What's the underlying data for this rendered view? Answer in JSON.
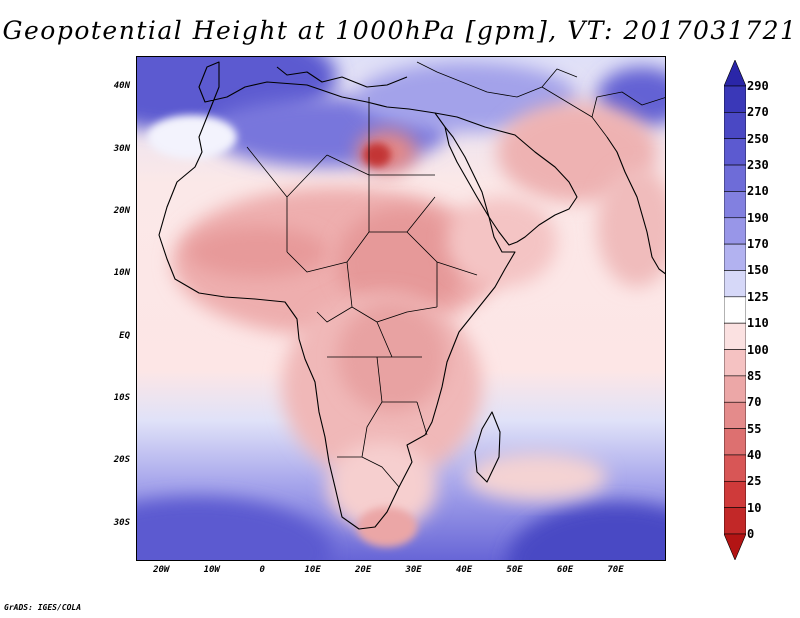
{
  "title": "Geopotential Height at 1000hPa [gpm], VT: 2017031721",
  "credit": "GrADS: IGES/COLA",
  "map": {
    "variable": "Geopotential Height",
    "level": "1000hPa",
    "units": "gpm",
    "valid_time": "2017031721",
    "lon_range": [
      -25,
      80
    ],
    "lat_range": [
      -36,
      45
    ],
    "lat_labels": [
      {
        "lat": 40,
        "text": "40N"
      },
      {
        "lat": 30,
        "text": "30N"
      },
      {
        "lat": 20,
        "text": "20N"
      },
      {
        "lat": 10,
        "text": "10N"
      },
      {
        "lat": 0,
        "text": "EQ"
      },
      {
        "lat": -10,
        "text": "10S"
      },
      {
        "lat": -20,
        "text": "20S"
      },
      {
        "lat": -30,
        "text": "30S"
      }
    ],
    "lon_labels": [
      {
        "lon": -20,
        "text": "20W"
      },
      {
        "lon": -10,
        "text": "10W"
      },
      {
        "lon": 0,
        "text": "0"
      },
      {
        "lon": 10,
        "text": "10E"
      },
      {
        "lon": 20,
        "text": "20E"
      },
      {
        "lon": 30,
        "text": "30E"
      },
      {
        "lon": 40,
        "text": "40E"
      },
      {
        "lon": 50,
        "text": "50E"
      },
      {
        "lon": 60,
        "text": "60E"
      },
      {
        "lon": 70,
        "text": "70E"
      }
    ]
  },
  "colorbar": {
    "levels": [
      "290",
      "270",
      "250",
      "230",
      "210",
      "190",
      "170",
      "150",
      "125",
      "110",
      "100",
      "85",
      "70",
      "55",
      "40",
      "25",
      "10",
      "0"
    ],
    "colors": [
      "#2a26a8",
      "#3a38b8",
      "#4a48c4",
      "#5c5ad0",
      "#6e6cd8",
      "#8280e0",
      "#9896e8",
      "#b2b2f0",
      "#d6d8f8",
      "#ffffff",
      "#fbe1e1",
      "#f5c2c2",
      "#eca7a7",
      "#e48b8b",
      "#dd7070",
      "#d85656",
      "#cf3a3a",
      "#c22828",
      "#b31414"
    ]
  },
  "regions": {
    "ocean_south": "#8e8ce0",
    "land_africa": "#f5c3c3"
  }
}
